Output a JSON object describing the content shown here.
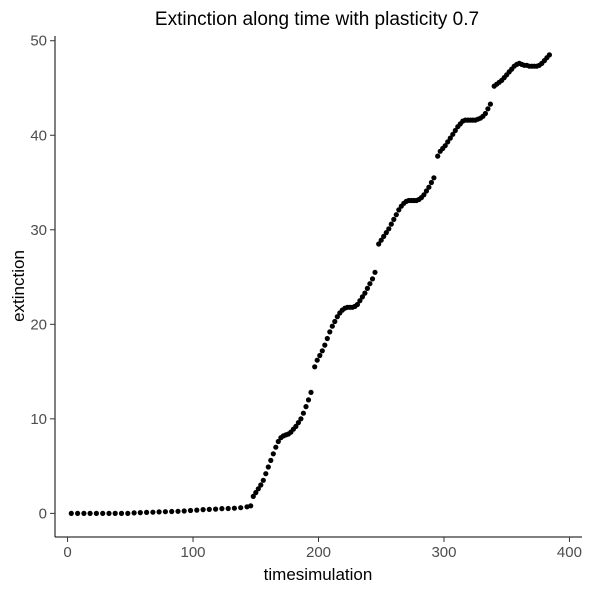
{
  "chart_data": {
    "type": "scatter",
    "title": "Extinction along time with plasticity 0.7",
    "xlabel": "timesimulation",
    "ylabel": "extinction",
    "xlim": [
      -10,
      410
    ],
    "ylim": [
      -2.5,
      50.5
    ],
    "xticks": [
      0,
      100,
      200,
      300,
      400
    ],
    "yticks": [
      0,
      10,
      20,
      30,
      40,
      50
    ],
    "grid": false,
    "legend": "none",
    "point_color": "#000000",
    "points": [
      [
        3,
        0.0
      ],
      [
        8,
        0.0
      ],
      [
        13,
        0.0
      ],
      [
        18,
        0.0
      ],
      [
        23,
        0.0
      ],
      [
        28,
        0.0
      ],
      [
        33,
        0.0
      ],
      [
        38,
        0.0
      ],
      [
        43,
        0.0
      ],
      [
        48,
        0.0
      ],
      [
        53,
        0.05
      ],
      [
        58,
        0.08
      ],
      [
        63,
        0.1
      ],
      [
        68,
        0.12
      ],
      [
        73,
        0.15
      ],
      [
        78,
        0.18
      ],
      [
        83,
        0.2
      ],
      [
        88,
        0.22
      ],
      [
        93,
        0.25
      ],
      [
        98,
        0.3
      ],
      [
        103,
        0.35
      ],
      [
        108,
        0.4
      ],
      [
        113,
        0.42
      ],
      [
        118,
        0.45
      ],
      [
        123,
        0.5
      ],
      [
        128,
        0.52
      ],
      [
        133,
        0.55
      ],
      [
        138,
        0.6
      ],
      [
        143,
        0.7
      ],
      [
        146,
        0.8
      ],
      [
        148,
        1.8
      ],
      [
        150,
        2.2
      ],
      [
        152,
        2.6
      ],
      [
        154,
        3.0
      ],
      [
        156,
        3.5
      ],
      [
        158,
        4.2
      ],
      [
        160,
        4.9
      ],
      [
        162,
        5.6
      ],
      [
        164,
        6.3
      ],
      [
        166,
        7.0
      ],
      [
        168,
        7.6
      ],
      [
        170,
        8.0
      ],
      [
        172,
        8.2
      ],
      [
        174,
        8.3
      ],
      [
        176,
        8.4
      ],
      [
        178,
        8.6
      ],
      [
        180,
        8.9
      ],
      [
        182,
        9.2
      ],
      [
        184,
        9.6
      ],
      [
        186,
        10.0
      ],
      [
        188,
        10.6
      ],
      [
        190,
        11.3
      ],
      [
        192,
        12.0
      ],
      [
        194,
        12.8
      ],
      [
        197,
        15.5
      ],
      [
        199,
        16.2
      ],
      [
        201,
        16.7
      ],
      [
        203,
        17.2
      ],
      [
        205,
        17.8
      ],
      [
        207,
        18.5
      ],
      [
        209,
        19.2
      ],
      [
        211,
        19.8
      ],
      [
        213,
        20.3
      ],
      [
        215,
        20.8
      ],
      [
        217,
        21.2
      ],
      [
        219,
        21.5
      ],
      [
        221,
        21.7
      ],
      [
        223,
        21.8
      ],
      [
        225,
        21.8
      ],
      [
        227,
        21.8
      ],
      [
        229,
        21.9
      ],
      [
        231,
        22.1
      ],
      [
        233,
        22.5
      ],
      [
        235,
        22.9
      ],
      [
        237,
        23.3
      ],
      [
        239,
        23.8
      ],
      [
        241,
        24.3
      ],
      [
        243,
        24.8
      ],
      [
        245,
        25.5
      ],
      [
        248,
        28.5
      ],
      [
        250,
        28.9
      ],
      [
        252,
        29.3
      ],
      [
        254,
        29.7
      ],
      [
        256,
        30.1
      ],
      [
        258,
        30.6
      ],
      [
        260,
        31.1
      ],
      [
        262,
        31.6
      ],
      [
        264,
        32.1
      ],
      [
        266,
        32.5
      ],
      [
        268,
        32.8
      ],
      [
        270,
        33.0
      ],
      [
        272,
        33.1
      ],
      [
        274,
        33.1
      ],
      [
        276,
        33.1
      ],
      [
        278,
        33.1
      ],
      [
        280,
        33.2
      ],
      [
        282,
        33.4
      ],
      [
        284,
        33.7
      ],
      [
        286,
        34.1
      ],
      [
        288,
        34.5
      ],
      [
        290,
        35.0
      ],
      [
        292,
        35.5
      ],
      [
        295,
        37.8
      ],
      [
        297,
        38.3
      ],
      [
        299,
        38.6
      ],
      [
        301,
        38.9
      ],
      [
        303,
        39.3
      ],
      [
        305,
        39.7
      ],
      [
        307,
        40.1
      ],
      [
        309,
        40.5
      ],
      [
        311,
        40.9
      ],
      [
        313,
        41.2
      ],
      [
        315,
        41.5
      ],
      [
        317,
        41.6
      ],
      [
        319,
        41.6
      ],
      [
        321,
        41.6
      ],
      [
        323,
        41.6
      ],
      [
        325,
        41.6
      ],
      [
        327,
        41.7
      ],
      [
        329,
        41.8
      ],
      [
        331,
        42.0
      ],
      [
        333,
        42.3
      ],
      [
        335,
        42.8
      ],
      [
        337,
        43.3
      ],
      [
        340,
        45.2
      ],
      [
        342,
        45.4
      ],
      [
        344,
        45.6
      ],
      [
        346,
        45.8
      ],
      [
        348,
        46.1
      ],
      [
        350,
        46.4
      ],
      [
        352,
        46.7
      ],
      [
        354,
        47.0
      ],
      [
        356,
        47.3
      ],
      [
        358,
        47.5
      ],
      [
        360,
        47.6
      ],
      [
        362,
        47.5
      ],
      [
        364,
        47.4
      ],
      [
        366,
        47.4
      ],
      [
        368,
        47.3
      ],
      [
        370,
        47.3
      ],
      [
        372,
        47.3
      ],
      [
        374,
        47.3
      ],
      [
        376,
        47.4
      ],
      [
        378,
        47.6
      ],
      [
        380,
        47.9
      ],
      [
        382,
        48.2
      ],
      [
        384,
        48.5
      ]
    ]
  }
}
